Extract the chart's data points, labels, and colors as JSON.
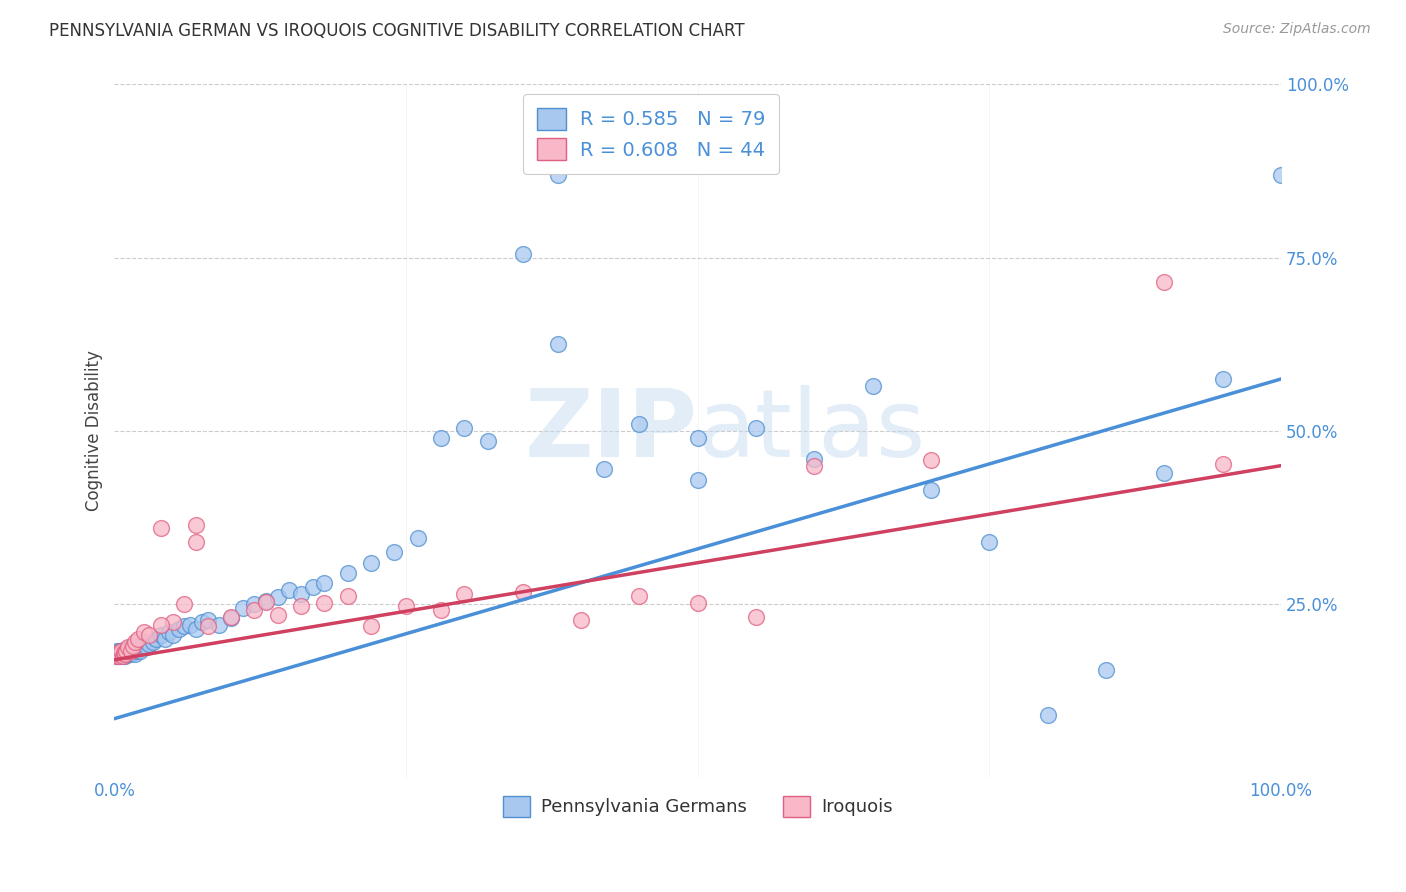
{
  "title": "PENNSYLVANIA GERMAN VS IROQUOIS COGNITIVE DISABILITY CORRELATION CHART",
  "source": "Source: ZipAtlas.com",
  "ylabel": "Cognitive Disability",
  "bg_color": "#ffffff",
  "blue_fill": "#A8C8F0",
  "pink_fill": "#F8B8C8",
  "blue_edge": "#5090D0",
  "pink_edge": "#E06080",
  "blue_line_color": "#4A90D9",
  "pink_line_color": "#D04060",
  "grid_color": "#cccccc",
  "legend_text_color": "#4A90D9",
  "R_blue": 0.585,
  "N_blue": 79,
  "R_pink": 0.608,
  "N_pink": 44,
  "blue_scatter_x": [
    0.001,
    0.002,
    0.002,
    0.003,
    0.003,
    0.004,
    0.004,
    0.005,
    0.005,
    0.006,
    0.006,
    0.007,
    0.007,
    0.008,
    0.008,
    0.009,
    0.01,
    0.01,
    0.011,
    0.012,
    0.013,
    0.014,
    0.015,
    0.016,
    0.017,
    0.018,
    0.019,
    0.02,
    0.022,
    0.024,
    0.026,
    0.028,
    0.03,
    0.033,
    0.036,
    0.04,
    0.043,
    0.047,
    0.05,
    0.055,
    0.06,
    0.065,
    0.07,
    0.075,
    0.08,
    0.09,
    0.1,
    0.11,
    0.12,
    0.13,
    0.14,
    0.15,
    0.16,
    0.17,
    0.18,
    0.2,
    0.22,
    0.24,
    0.26,
    0.28,
    0.3,
    0.32,
    0.35,
    0.38,
    0.42,
    0.45,
    0.5,
    0.55,
    0.6,
    0.65,
    0.7,
    0.75,
    0.8,
    0.85,
    0.9,
    0.95,
    1.0,
    0.5,
    0.38
  ],
  "blue_scatter_y": [
    0.175,
    0.178,
    0.182,
    0.175,
    0.18,
    0.178,
    0.183,
    0.175,
    0.18,
    0.178,
    0.182,
    0.175,
    0.18,
    0.178,
    0.183,
    0.176,
    0.18,
    0.185,
    0.178,
    0.182,
    0.178,
    0.183,
    0.18,
    0.182,
    0.185,
    0.178,
    0.183,
    0.188,
    0.183,
    0.19,
    0.195,
    0.188,
    0.192,
    0.195,
    0.2,
    0.205,
    0.2,
    0.21,
    0.205,
    0.215,
    0.218,
    0.22,
    0.215,
    0.225,
    0.228,
    0.22,
    0.23,
    0.245,
    0.25,
    0.255,
    0.26,
    0.27,
    0.265,
    0.275,
    0.28,
    0.295,
    0.31,
    0.325,
    0.345,
    0.49,
    0.505,
    0.485,
    0.755,
    0.87,
    0.445,
    0.51,
    0.43,
    0.505,
    0.46,
    0.565,
    0.415,
    0.34,
    0.09,
    0.155,
    0.44,
    0.575,
    0.87,
    0.49,
    0.625
  ],
  "pink_scatter_x": [
    0.001,
    0.002,
    0.003,
    0.004,
    0.005,
    0.006,
    0.007,
    0.008,
    0.009,
    0.01,
    0.012,
    0.014,
    0.016,
    0.018,
    0.02,
    0.025,
    0.03,
    0.04,
    0.05,
    0.06,
    0.07,
    0.08,
    0.1,
    0.12,
    0.14,
    0.16,
    0.18,
    0.2,
    0.22,
    0.25,
    0.28,
    0.3,
    0.35,
    0.4,
    0.45,
    0.5,
    0.55,
    0.6,
    0.7,
    0.9,
    0.95,
    0.13,
    0.07,
    0.04
  ],
  "pink_scatter_y": [
    0.175,
    0.178,
    0.18,
    0.175,
    0.178,
    0.182,
    0.175,
    0.18,
    0.178,
    0.183,
    0.188,
    0.183,
    0.19,
    0.195,
    0.2,
    0.21,
    0.205,
    0.36,
    0.225,
    0.25,
    0.365,
    0.218,
    0.232,
    0.242,
    0.235,
    0.248,
    0.252,
    0.262,
    0.218,
    0.248,
    0.242,
    0.265,
    0.268,
    0.228,
    0.262,
    0.252,
    0.232,
    0.45,
    0.458,
    0.715,
    0.452,
    0.253,
    0.34,
    0.22
  ],
  "blue_line_x0": 0.0,
  "blue_line_y0": 0.085,
  "blue_line_x1": 1.0,
  "blue_line_y1": 0.575,
  "pink_line_x0": 0.0,
  "pink_line_y0": 0.17,
  "pink_line_x1": 1.0,
  "pink_line_y1": 0.45,
  "xlim": [
    0.0,
    1.0
  ],
  "ylim": [
    0.0,
    1.0
  ],
  "xticks": [
    0.0,
    0.25,
    0.5,
    0.75,
    1.0
  ],
  "xtick_labels": [
    "0.0%",
    "",
    "",
    "",
    "100.0%"
  ],
  "yticks": [
    0.25,
    0.5,
    0.75,
    1.0
  ],
  "ytick_labels": [
    "25.0%",
    "50.0%",
    "75.0%",
    "100.0%"
  ],
  "watermark_zip": "ZIP",
  "watermark_atlas": "atlas",
  "legend_label_blue": "Pennsylvania Germans",
  "legend_label_pink": "Iroquois"
}
